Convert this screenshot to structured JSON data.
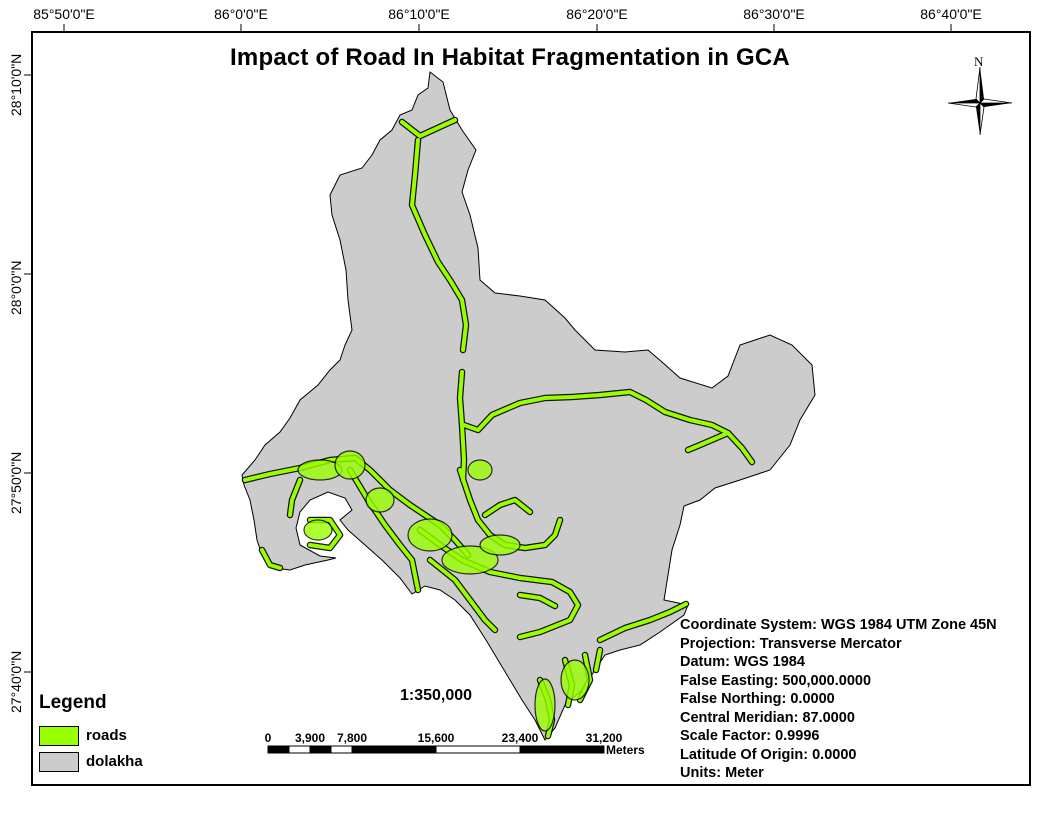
{
  "title": "Impact of Road In Habitat Fragmentation in GCA",
  "graticule": {
    "longitude_labels": [
      "85°50'0\"E",
      "86°0'0\"E",
      "86°10'0\"E",
      "86°20'0\"E",
      "86°30'0\"E",
      "86°40'0\"E"
    ],
    "latitude_labels": [
      "28°10'0\"N",
      "28°0'0\"N",
      "27°50'0\"N",
      "27°40'0\"N"
    ]
  },
  "north_arrow": {
    "label": "N",
    "icon": "north-arrow-icon"
  },
  "legend": {
    "title": "Legend",
    "items": [
      {
        "label": "roads",
        "color": "#99ff00"
      },
      {
        "label": "dolakha",
        "color": "#cccccc"
      }
    ]
  },
  "scale": {
    "text": "1:350,000",
    "bar_labels": [
      "0",
      "3,900",
      "7,800",
      "15,600",
      "23,400",
      "31,200"
    ],
    "bar_values": [
      0,
      3900,
      7800,
      15600,
      23400,
      31200
    ],
    "units": "Meters"
  },
  "coordinate_info": [
    "Coordinate System: WGS 1984 UTM Zone 45N",
    "Projection: Transverse Mercator",
    "Datum: WGS 1984",
    "False Easting: 500,000.0000",
    "False Northing: 0.0000",
    "Central Meridian: 87.0000",
    "Scale Factor: 0.9996",
    "Latitude Of Origin: 0.0000",
    "Units: Meter"
  ],
  "colors": {
    "district_fill": "#cccccc",
    "road": "#99ff00",
    "outline": "#000000"
  }
}
